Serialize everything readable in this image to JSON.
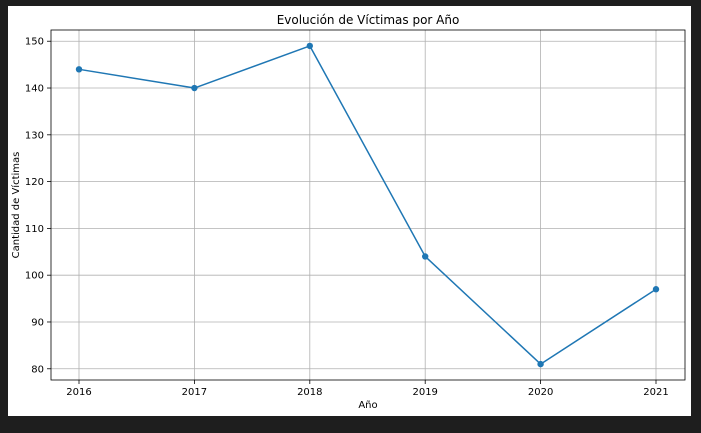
{
  "chart_data": {
    "type": "line",
    "title": "Evolución de Víctimas por Año",
    "xlabel": "Año",
    "ylabel": "Cantidad de Víctimas",
    "categories": [
      "2016",
      "2017",
      "2018",
      "2019",
      "2020",
      "2021"
    ],
    "series": [
      {
        "values": [
          144,
          140,
          149,
          104,
          81,
          97
        ]
      }
    ],
    "ylim": [
      77.6,
      152.4
    ],
    "yticks": [
      "80",
      "90",
      "100",
      "110",
      "120",
      "130",
      "140",
      "150"
    ],
    "grid": true,
    "markers": true,
    "colors": {
      "line": "#1f77b4",
      "grid": "#b0b0b0",
      "frame_background": "#1e1e1e",
      "plot_background": "#ffffff"
    }
  }
}
